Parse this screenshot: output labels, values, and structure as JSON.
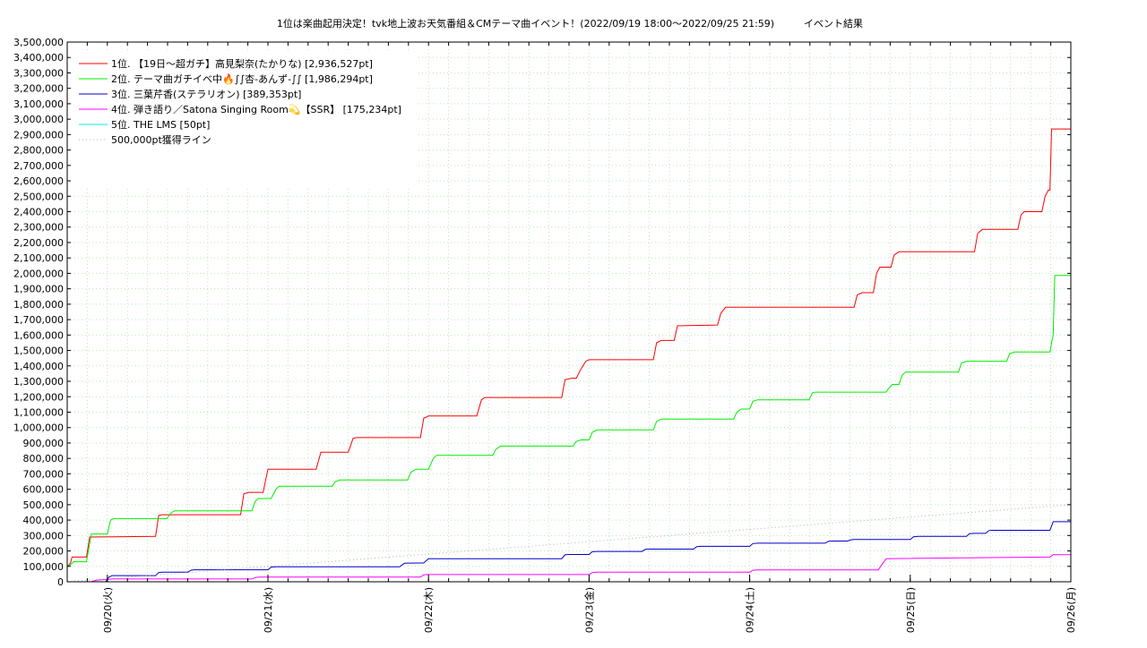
{
  "chart_data": {
    "type": "line",
    "title": "1位は楽曲起用決定！tvk地上波お天気番組＆CMテーマ曲イベント！(2022/09/19 18:00～2022/09/25 21:59)　　　イベント結果",
    "xlabel": "",
    "ylabel": "",
    "x_unit": "days since 2022/09/19 18:00",
    "xlim": [
      0,
      6.25
    ],
    "ylim": [
      0,
      3500000
    ],
    "y_ticks": [
      0,
      100000,
      200000,
      300000,
      400000,
      500000,
      600000,
      700000,
      800000,
      900000,
      1000000,
      1100000,
      1200000,
      1300000,
      1400000,
      1500000,
      1600000,
      1700000,
      1800000,
      1900000,
      2000000,
      2100000,
      2200000,
      2300000,
      2400000,
      2500000,
      2600000,
      2700000,
      2800000,
      2900000,
      3000000,
      3100000,
      3200000,
      3300000,
      3400000,
      3500000
    ],
    "y_tick_labels": [
      "0",
      "100,000",
      "200,000",
      "300,000",
      "400,000",
      "500,000",
      "600,000",
      "700,000",
      "800,000",
      "900,000",
      "1,000,000",
      "1,100,000",
      "1,200,000",
      "1,300,000",
      "1,400,000",
      "1,500,000",
      "1,600,000",
      "1,700,000",
      "1,800,000",
      "1,900,000",
      "2,000,000",
      "2,100,000",
      "2,200,000",
      "2,300,000",
      "2,400,000",
      "2,500,000",
      "2,600,000",
      "2,700,000",
      "2,800,000",
      "2,900,000",
      "3,000,000",
      "3,100,000",
      "3,200,000",
      "3,300,000",
      "3,400,000",
      "3,500,000"
    ],
    "x_ticks": [
      0.25,
      1.25,
      2.25,
      3.25,
      4.25,
      5.25,
      6.25
    ],
    "x_tick_labels": [
      "09/20(火)",
      "09/21(水)",
      "09/22(木)",
      "09/23(金)",
      "09/24(土)",
      "09/25(日)",
      "09/26(月)"
    ],
    "grid": true,
    "legend_position": "top-left",
    "series": [
      {
        "name": "1位. 【19日～超ガチ】高見梨奈(たかりな) [2,936,527pt]",
        "color": "#ff0000",
        "style": "solid",
        "x": [
          0,
          0.02,
          0.03,
          0.12,
          0.14,
          0.55,
          0.57,
          0.59,
          1.08,
          1.1,
          1.13,
          1.22,
          1.24,
          1.25,
          1.55,
          1.58,
          1.6,
          1.75,
          1.78,
          1.8,
          2.2,
          2.22,
          2.25,
          2.55,
          2.58,
          2.6,
          3.08,
          3.1,
          3.14,
          3.17,
          3.2,
          3.23,
          3.25,
          3.65,
          3.67,
          3.7,
          3.78,
          3.8,
          4.05,
          4.07,
          4.1,
          4.9,
          4.92,
          4.95,
          5.02,
          5.04,
          5.06,
          5.13,
          5.15,
          5.18,
          5.65,
          5.67,
          5.7,
          5.92,
          5.94,
          5.96,
          6.07,
          6.09,
          6.11,
          6.12,
          6.13,
          6.25
        ],
        "y": [
          100000,
          120000,
          160000,
          160000,
          290000,
          295000,
          430000,
          435000,
          435000,
          570000,
          580000,
          580000,
          680000,
          730000,
          730000,
          840000,
          840000,
          840000,
          930000,
          935000,
          935000,
          1060000,
          1075000,
          1075000,
          1180000,
          1195000,
          1195000,
          1310000,
          1320000,
          1320000,
          1380000,
          1430000,
          1440000,
          1440000,
          1550000,
          1565000,
          1565000,
          1660000,
          1665000,
          1740000,
          1780000,
          1780000,
          1860000,
          1875000,
          1875000,
          2000000,
          2040000,
          2040000,
          2120000,
          2140000,
          2140000,
          2260000,
          2285000,
          2285000,
          2380000,
          2400000,
          2400000,
          2500000,
          2540000,
          2540000,
          2936527,
          2936527
        ]
      },
      {
        "name": "2位. テーマ曲ガチイベ中🔥∫∫杏-あんず-∫∫ [1,986,294pt]",
        "color": "#00ee00",
        "style": "solid",
        "x": [
          0,
          0.02,
          0.04,
          0.12,
          0.15,
          0.25,
          0.27,
          0.29,
          0.62,
          0.65,
          0.67,
          1.15,
          1.17,
          1.19,
          1.27,
          1.3,
          1.32,
          1.65,
          1.67,
          1.7,
          2.12,
          2.14,
          2.17,
          2.25,
          2.28,
          2.3,
          2.65,
          2.67,
          2.7,
          3.15,
          3.17,
          3.2,
          3.25,
          3.27,
          3.3,
          3.65,
          3.67,
          3.7,
          4.15,
          4.17,
          4.2,
          4.25,
          4.27,
          4.3,
          4.62,
          4.64,
          4.66,
          5.1,
          5.12,
          5.14,
          5.18,
          5.2,
          5.22,
          5.55,
          5.57,
          5.6,
          5.85,
          5.87,
          5.9,
          6.12,
          6.13,
          6.14,
          6.15,
          6.25
        ],
        "y": [
          100000,
          110000,
          130000,
          130000,
          310000,
          310000,
          400000,
          410000,
          410000,
          450000,
          460000,
          460000,
          520000,
          540000,
          540000,
          600000,
          620000,
          620000,
          650000,
          660000,
          660000,
          710000,
          730000,
          730000,
          800000,
          820000,
          820000,
          860000,
          880000,
          880000,
          910000,
          920000,
          920000,
          970000,
          985000,
          985000,
          1040000,
          1055000,
          1055000,
          1100000,
          1120000,
          1120000,
          1170000,
          1180000,
          1180000,
          1225000,
          1230000,
          1230000,
          1260000,
          1280000,
          1280000,
          1340000,
          1360000,
          1360000,
          1420000,
          1430000,
          1430000,
          1480000,
          1490000,
          1490000,
          1550000,
          1600000,
          1986294,
          1986294
        ]
      },
      {
        "name": "3位. 三葉芹香(ステラリオン) [389,353pt]",
        "color": "#0000cc",
        "style": "solid",
        "x": [
          0.24,
          0.26,
          0.28,
          0.55,
          0.57,
          0.59,
          0.75,
          0.77,
          0.79,
          1.25,
          1.27,
          1.3,
          2.05,
          2.07,
          2.1,
          2.2,
          2.22,
          2.25,
          3.08,
          3.1,
          3.12,
          3.25,
          3.27,
          3.3,
          3.58,
          3.6,
          3.62,
          3.9,
          3.92,
          3.95,
          4.25,
          4.27,
          4.3,
          4.72,
          4.74,
          4.76,
          4.86,
          4.88,
          4.9,
          5.25,
          5.27,
          5.3,
          5.6,
          5.62,
          5.65,
          5.72,
          5.74,
          5.76,
          6.12,
          6.14,
          6.25
        ],
        "y": [
          0,
          30000,
          40000,
          40000,
          60000,
          62000,
          62000,
          75000,
          78000,
          78000,
          95000,
          97000,
          97000,
          97000,
          120000,
          122000,
          122000,
          150000,
          150000,
          175000,
          177000,
          177000,
          195000,
          197000,
          197000,
          210000,
          212000,
          212000,
          228000,
          230000,
          230000,
          248000,
          250000,
          250000,
          262000,
          264000,
          264000,
          272000,
          274000,
          274000,
          292000,
          294000,
          294000,
          312000,
          314000,
          314000,
          332000,
          334000,
          334000,
          389353,
          389353
        ]
      },
      {
        "name": "4位. 弾き語り／Satona Singing Room💫【SSR】 [175,234pt]",
        "color": "#ff00ff",
        "style": "solid",
        "x": [
          0.15,
          0.18,
          0.25,
          0.28,
          1.15,
          1.17,
          1.2,
          2.2,
          2.22,
          2.25,
          3.25,
          3.27,
          3.3,
          4.25,
          4.27,
          4.3,
          5.05,
          5.08,
          5.1,
          6.12,
          6.14,
          6.25
        ],
        "y": [
          0,
          10000,
          15000,
          18000,
          18000,
          28000,
          30000,
          30000,
          45000,
          47000,
          47000,
          60000,
          62000,
          62000,
          75000,
          77000,
          77000,
          120000,
          150000,
          160000,
          175234,
          175234
        ]
      },
      {
        "name": "5位. THE LMS [50pt]",
        "color": "#00eeee",
        "style": "solid",
        "x": [
          0,
          6.25
        ],
        "y": [
          0,
          50
        ]
      },
      {
        "name": "500,000pt獲得ライン",
        "color": "#b0b0b0",
        "style": "dotted",
        "x": [
          0,
          6.25
        ],
        "y": [
          0,
          500000
        ]
      }
    ]
  }
}
